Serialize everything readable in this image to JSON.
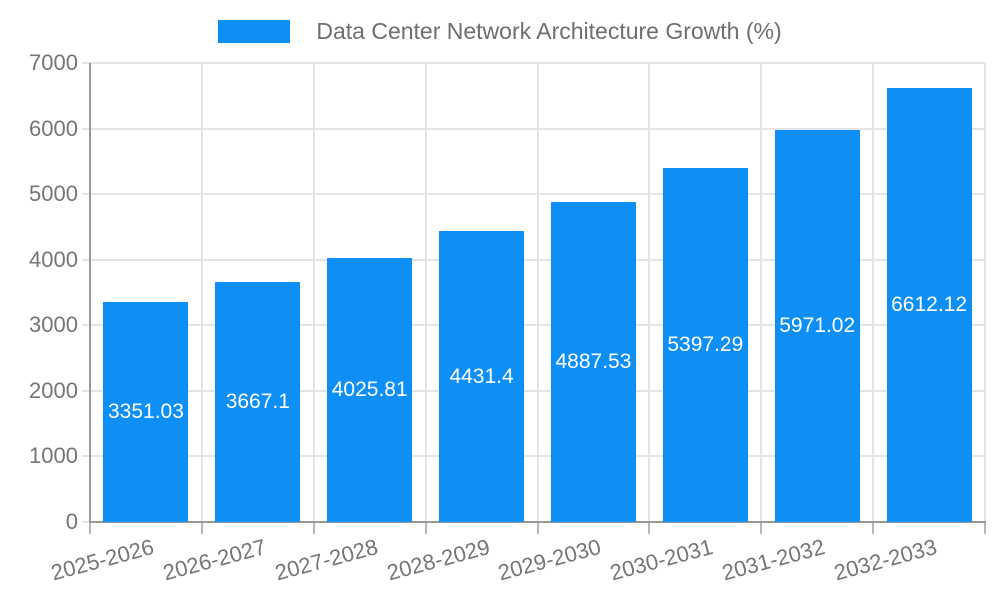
{
  "chart_data": {
    "type": "bar",
    "title": "Data Center Network Architecture Growth (%)",
    "categories": [
      "2025-2026",
      "2026-2027",
      "2027-2028",
      "2028-2029",
      "2029-2030",
      "2030-2031",
      "2031-2032",
      "2032-2033"
    ],
    "values": [
      3351.03,
      3667.1,
      4025.81,
      4431.4,
      4887.53,
      5397.29,
      5971.02,
      6612.12
    ],
    "value_labels": [
      "3351.03",
      "3667.1",
      "4025.81",
      "4431.4",
      "4887.53",
      "5397.29",
      "5971.02",
      "6612.12"
    ],
    "xlabel": "",
    "ylabel": "",
    "ylim": [
      0,
      7000
    ],
    "y_ticks": [
      0,
      1000,
      2000,
      3000,
      4000,
      5000,
      6000,
      7000
    ],
    "grid": true,
    "legend_position": "top-center",
    "value_label_position": "center-inside",
    "colors": {
      "bar": "#0d8ff6",
      "grid": "#e4e4e4",
      "axis": "#9a9a9a",
      "tick": "#b5b5b5",
      "tick_label": "#757575",
      "title": "#6e6e6e",
      "value_label": "#ffffff",
      "background": "#ffffff"
    }
  }
}
